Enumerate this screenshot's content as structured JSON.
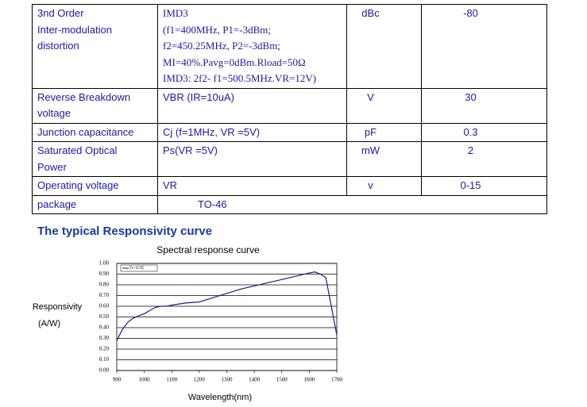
{
  "table": {
    "rows": [
      [
        "3nd Order\nInter-modulation\ndistortion",
        "IMD3\n(f1=400MHz, P1=-3dBm;\nf2=450.25MHz, P2=-3dBm;\nMI=40%.Pavg=0dBm.Rload=50Ω\nIMD3: 2f2- f1=500.5MHz.VR=12V)",
        "dBc",
        "-80"
      ],
      [
        "Reverse     Breakdown\nvoltage",
        "VBR (IR=10uA)",
        "V",
        "30"
      ],
      [
        "Junction capacitance",
        "Cj (f=1MHz, VR =5V)",
        "pF",
        "0.3"
      ],
      [
        "Saturated          Optical\nPower",
        "Ps(VR =5V)",
        "mW",
        "2"
      ],
      [
        "Operating voltage",
        "VR",
        "v",
        "0-15"
      ],
      [
        "package",
        "TO-46"
      ]
    ]
  },
  "heading": "The typical Responsivity curve",
  "chart_data": {
    "type": "line",
    "title": "Spectral response curve",
    "xlabel": "Wavelength(nm)",
    "ylabel": [
      "Responsivity",
      "(A/W)"
    ],
    "x": [
      900,
      920,
      940,
      960,
      980,
      1000,
      1020,
      1040,
      1060,
      1080,
      1100,
      1150,
      1200,
      1250,
      1300,
      1350,
      1400,
      1450,
      1500,
      1550,
      1600,
      1620,
      1640,
      1660,
      1680,
      1700
    ],
    "series": [
      {
        "name": "Tc=25℃",
        "color": "#1a1a8c",
        "values": [
          0.28,
          0.38,
          0.45,
          0.49,
          0.51,
          0.53,
          0.56,
          0.59,
          0.6,
          0.6,
          0.61,
          0.63,
          0.64,
          0.68,
          0.72,
          0.76,
          0.79,
          0.82,
          0.85,
          0.88,
          0.91,
          0.92,
          0.9,
          0.87,
          0.6,
          0.33
        ]
      }
    ],
    "xlim": [
      900,
      1700
    ],
    "ylim": [
      0,
      1
    ],
    "xticks": [
      900,
      1000,
      1100,
      1200,
      1300,
      1400,
      1500,
      1600,
      1700
    ],
    "yticks": [
      {
        "value": 0,
        "label": "0.00"
      },
      {
        "value": 0.1,
        "label": "0.10"
      },
      {
        "value": 0.2,
        "label": "0.20"
      },
      {
        "value": 0.3,
        "label": "0.30"
      },
      {
        "value": 0.4,
        "label": "0.40"
      },
      {
        "value": 0.5,
        "label": "0.50"
      },
      {
        "value": 0.6,
        "label": "0.60"
      },
      {
        "value": 0.7,
        "label": "0.70"
      },
      {
        "value": 0.8,
        "label": "0.80"
      },
      {
        "value": 0.9,
        "label": "0.90"
      },
      {
        "value": 1,
        "label": "1.00"
      }
    ],
    "grid": true,
    "legend": "upper left"
  }
}
